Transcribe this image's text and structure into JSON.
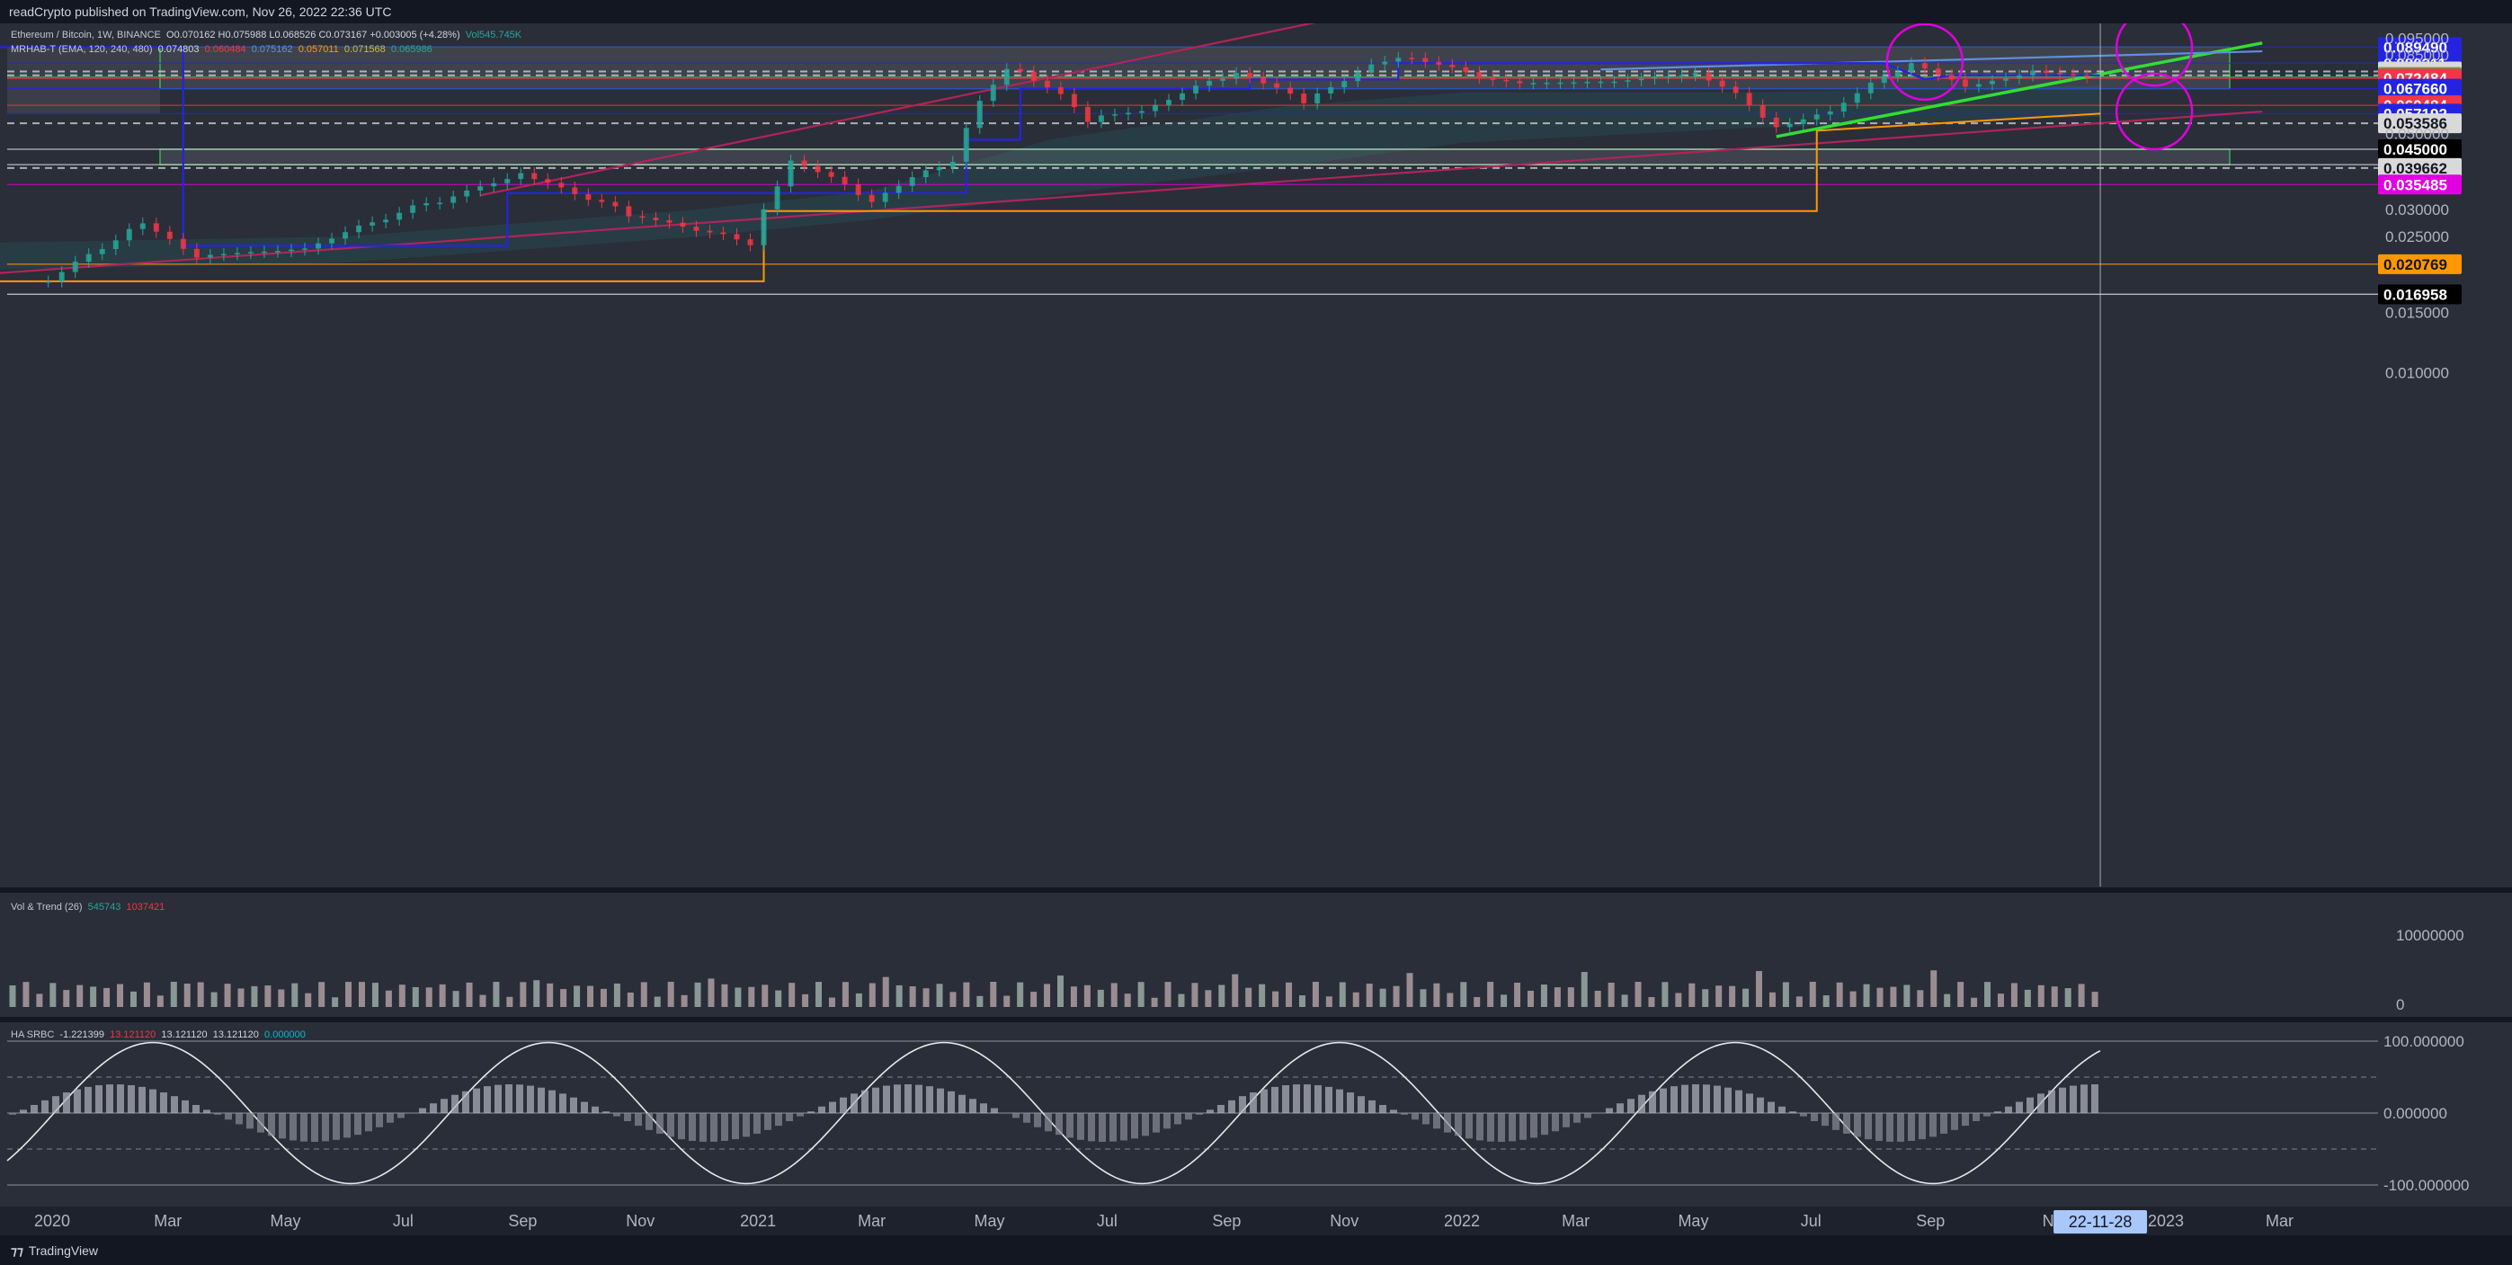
{
  "header": {
    "publish_line": "readCrypto published on TradingView.com, Nov 26, 2022 22:36 UTC"
  },
  "legend": {
    "symbol": "Ethereum / Bitcoin, 1W, BINANCE",
    "ohlc": "O0.070162 H0.075988 L0.068526 C0.073167 +0.003005 (+4.28%)",
    "volume": "Vol545.745K",
    "mrhab_label": "MRHAB-T (EMA, 120, 240, 480)",
    "mrhab_values": [
      "0.074803",
      "0.060484",
      "0.075162",
      "0.057011",
      "0.071568",
      "0.065986"
    ],
    "vol_trend_label": "Vol & Trend (26)",
    "vol_trend_values": [
      "545743",
      "1037421"
    ],
    "ha_srbc_label": "HA SRBC",
    "ha_srbc_values": [
      "-1.221399",
      "13.121120",
      "13.121120",
      "13.121120",
      "0.000000"
    ]
  },
  "price_axis": {
    "ticks": [
      "0.095000",
      "0.085000",
      "0.050000",
      "0.030000",
      "0.025000",
      "0.015000",
      "0.010000"
    ],
    "labels": [
      {
        "text": "0.089490",
        "bg": "#2424e0",
        "fg": "#ffffff"
      },
      {
        "text": "0.080311",
        "bg": "#2424e0",
        "fg": "#ffffff"
      },
      {
        "text": "0.075938",
        "bg": "#d9d9d9",
        "fg": "#131722"
      },
      {
        "text": "0.074044",
        "bg": "#d9d9d9",
        "fg": "#131722"
      },
      {
        "text": "0.073167",
        "bg": "#4caf50",
        "fg": "#ffffff",
        "sub": "1d 2h"
      },
      {
        "text": "0.072484",
        "bg": "#f23645",
        "fg": "#ffffff"
      },
      {
        "text": "0.067660",
        "bg": "#2424e0",
        "fg": "#ffffff"
      },
      {
        "text": "0.060484",
        "bg": "#f23645",
        "fg": "#ffffff"
      },
      {
        "text": "0.057192",
        "bg": "#2424e0",
        "fg": "#ffffff"
      },
      {
        "text": "0.053586",
        "bg": "#d9d9d9",
        "fg": "#131722"
      },
      {
        "text": "0.045000",
        "bg": "#000000",
        "fg": "#ffffff"
      },
      {
        "text": "0.040575",
        "bg": "#000000",
        "fg": "#ffffff"
      },
      {
        "text": "0.039662",
        "bg": "#d9d9d9",
        "fg": "#131722"
      },
      {
        "text": "0.035485",
        "bg": "#e100e1",
        "fg": "#ffffff"
      },
      {
        "text": "0.020769",
        "bg": "#ff9800",
        "fg": "#131722"
      },
      {
        "text": "0.016958",
        "bg": "#000000",
        "fg": "#ffffff"
      }
    ],
    "volume_ticks": [
      "10000000",
      "0"
    ],
    "osc_ticks": [
      "100.000000",
      "0.000000",
      "-100.000000"
    ]
  },
  "time_axis": {
    "labels": [
      "2020",
      "Mar",
      "May",
      "Jul",
      "Sep",
      "Nov",
      "2021",
      "Mar",
      "May",
      "Jul",
      "Sep",
      "Nov",
      "2022",
      "Mar",
      "May",
      "Jul",
      "Sep",
      "N",
      "2023",
      "Mar"
    ],
    "cursor_label": "22-11-28"
  },
  "footer": {
    "brand": "TradingView"
  },
  "colors": {
    "bull": "#26a69a",
    "bear": "#f23645",
    "orange": "#ff9800",
    "blue": "#2424e0",
    "magenta": "#e100e1",
    "green_line": "#33dd33",
    "trend_red": "#b0245a",
    "teal": "#1fa39a"
  },
  "chart_data": {
    "type": "candlestick",
    "title": "Ethereum / Bitcoin, 1W, BINANCE",
    "y_scale": "log",
    "ylim": [
      0.01,
      0.099
    ],
    "x_range": [
      "2019-12",
      "2023-03"
    ],
    "last_close": 0.073167,
    "swing_points": [
      {
        "date": "2019-12-30",
        "close": 0.0185
      },
      {
        "date": "2020-02-17",
        "close": 0.027
      },
      {
        "date": "2020-03-16",
        "close": 0.022
      },
      {
        "date": "2020-05-11",
        "close": 0.023
      },
      {
        "date": "2020-07-27",
        "close": 0.033
      },
      {
        "date": "2020-08-31",
        "close": 0.038
      },
      {
        "date": "2020-10-26",
        "close": 0.029
      },
      {
        "date": "2020-12-28",
        "close": 0.024
      },
      {
        "date": "2021-01-18",
        "close": 0.042
      },
      {
        "date": "2021-03-01",
        "close": 0.032
      },
      {
        "date": "2021-04-12",
        "close": 0.042
      },
      {
        "date": "2021-05-10",
        "close": 0.08
      },
      {
        "date": "2021-06-21",
        "close": 0.056
      },
      {
        "date": "2021-07-19",
        "close": 0.058
      },
      {
        "date": "2021-09-06",
        "close": 0.076
      },
      {
        "date": "2021-10-11",
        "close": 0.062
      },
      {
        "date": "2021-11-29",
        "close": 0.085
      },
      {
        "date": "2022-01-24",
        "close": 0.07
      },
      {
        "date": "2022-03-21",
        "close": 0.071
      },
      {
        "date": "2022-05-02",
        "close": 0.075
      },
      {
        "date": "2022-05-23",
        "close": 0.065
      },
      {
        "date": "2022-06-13",
        "close": 0.052
      },
      {
        "date": "2022-07-11",
        "close": 0.058
      },
      {
        "date": "2022-08-22",
        "close": 0.081
      },
      {
        "date": "2022-09-19",
        "close": 0.068
      },
      {
        "date": "2022-10-24",
        "close": 0.076
      },
      {
        "date": "2022-11-21",
        "close": 0.073167
      }
    ],
    "horizontal_levels": [
      0.08949,
      0.080311,
      0.075938,
      0.074044,
      0.072484,
      0.06766,
      0.060484,
      0.057192,
      0.053586,
      0.045,
      0.040575,
      0.039662,
      0.035485,
      0.020769,
      0.016958
    ],
    "zones": [
      [
        0.06766,
        0.08949
      ],
      [
        0.040575,
        0.045
      ]
    ],
    "trendlines": [
      {
        "name": "rising support",
        "from": [
          "2022-06-13",
          0.049
        ],
        "to": [
          "2023-02-20",
          0.092
        ],
        "color": "#33dd33"
      },
      {
        "name": "long support",
        "from": [
          "2019-12-01",
          0.0195
        ],
        "to": [
          "2023-02-20",
          0.058
        ],
        "color": "#b0245a"
      },
      {
        "name": "steep",
        "from": [
          "2020-08-10",
          0.033
        ],
        "to": [
          "2021-11-01",
          0.11
        ],
        "color": "#b0245a"
      },
      {
        "name": "upper",
        "from": [
          "2022-03-14",
          0.077
        ],
        "to": [
          "2023-02-20",
          0.087
        ],
        "color": "#5f8fe0"
      }
    ],
    "highlight_circles": [
      {
        "date": "2022-08-29",
        "price": 0.081
      },
      {
        "date": "2022-12-26",
        "price": 0.089
      },
      {
        "date": "2022-12-26",
        "price": 0.058
      }
    ],
    "volume_range": [
      0,
      14000000
    ],
    "oscillator_range": [
      -100,
      100
    ]
  }
}
